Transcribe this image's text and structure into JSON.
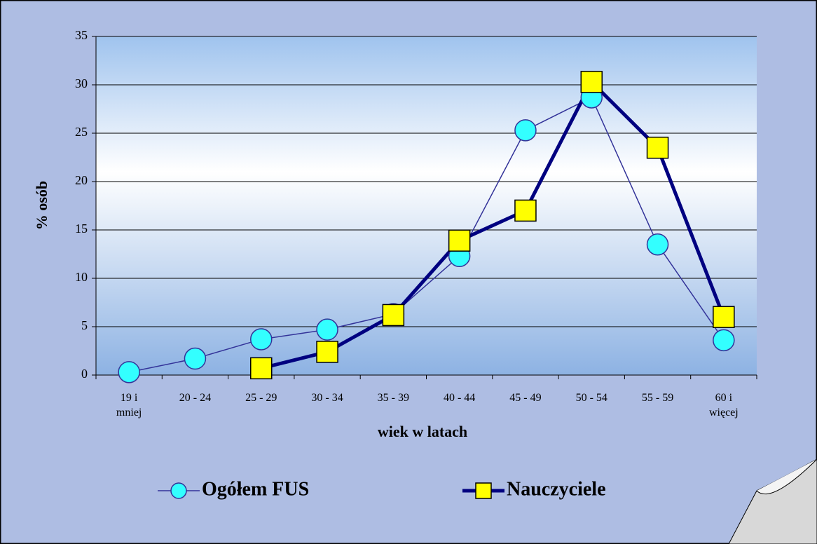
{
  "chart_data": {
    "type": "line",
    "x_label": "wiek w latach",
    "y_label": "% osób",
    "categories": [
      "19 i mniej",
      "20 - 24",
      "25 - 29",
      "30 - 34",
      "35 - 39",
      "40 - 44",
      "45 - 49",
      "50 - 54",
      "55 - 59",
      "60 i więcej"
    ],
    "series": [
      {
        "name": "Ogółem FUS",
        "color": "#333399",
        "marker_color": "#33ffff",
        "marker": "circle",
        "values": [
          0.3,
          1.7,
          3.7,
          4.7,
          6.3,
          12.3,
          25.3,
          28.7,
          13.5,
          3.6
        ]
      },
      {
        "name": "Nauczyciele",
        "color": "#000080",
        "marker_color": "#ffff00",
        "marker": "square",
        "values": [
          null,
          null,
          0.7,
          2.4,
          6.2,
          13.9,
          17.0,
          30.3,
          23.5,
          6.0
        ]
      }
    ],
    "ylim": [
      0,
      35
    ],
    "yticks": [
      0,
      5,
      10,
      15,
      20,
      25,
      30,
      35
    ],
    "grid": true,
    "legend": "bottom"
  }
}
